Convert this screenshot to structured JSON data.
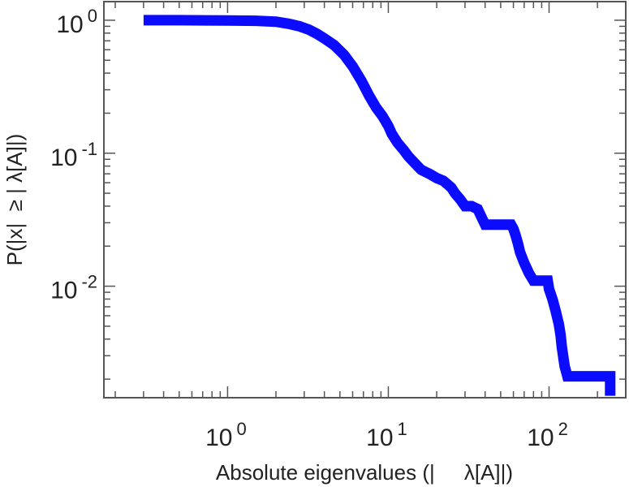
{
  "chart_data": {
    "type": "line",
    "title": "",
    "xlabel": "Absolute eigenvalues (|     λ[A]|)",
    "ylabel": "P(|x|  ≥ | λ[A]|)",
    "xscale": "log",
    "yscale": "log",
    "xlim": [
      0.17,
      300
    ],
    "ylim": [
      0.00145,
      1.38
    ],
    "grid": false,
    "legend": "none",
    "line_color": "#0b0bff",
    "x_ticks": [
      {
        "base": "10",
        "exp": "0",
        "value": 1
      },
      {
        "base": "10",
        "exp": "1",
        "value": 10
      },
      {
        "base": "10",
        "exp": "2",
        "value": 100
      }
    ],
    "y_ticks": [
      {
        "base": "10",
        "exp": "0",
        "value": 1
      },
      {
        "base": "10",
        "exp": "-1",
        "value": 0.1
      },
      {
        "base": "10",
        "exp": "-2",
        "value": 0.01
      }
    ],
    "series": [
      {
        "x": [
          0.3,
          0.5,
          1.0,
          1.5,
          2.0,
          2.4,
          2.8,
          3.2,
          3.6,
          4.0,
          4.6,
          5.3,
          6.0,
          6.8,
          7.6,
          8.4,
          9.2,
          10.0,
          10.5,
          11.4,
          12.5,
          13.3,
          14.5,
          16.0,
          18.0,
          20.0,
          22.0,
          23.5,
          24.7,
          26.0,
          28.0,
          30.0,
          33.0,
          36.0,
          38.0,
          40.0,
          45.0,
          50.0,
          55.0,
          58.0,
          60.0,
          62.0,
          64.0,
          66.0,
          70.0,
          75.0,
          80.0,
          90.0,
          98.0,
          100.0,
          105.0,
          110.0,
          115.0,
          118.0,
          120.0,
          125.0,
          130.0,
          150.0,
          200.0,
          240.0,
          240.0
        ],
        "y": [
          1.0,
          1.0,
          0.995,
          0.99,
          0.975,
          0.94,
          0.9,
          0.85,
          0.79,
          0.73,
          0.65,
          0.55,
          0.45,
          0.35,
          0.27,
          0.22,
          0.19,
          0.16,
          0.14,
          0.12,
          0.105,
          0.095,
          0.085,
          0.075,
          0.07,
          0.065,
          0.062,
          0.058,
          0.055,
          0.05,
          0.045,
          0.04,
          0.04,
          0.038,
          0.033,
          0.029,
          0.029,
          0.029,
          0.029,
          0.029,
          0.027,
          0.024,
          0.021,
          0.018,
          0.015,
          0.0125,
          0.011,
          0.011,
          0.011,
          0.0095,
          0.008,
          0.0065,
          0.0052,
          0.0043,
          0.0035,
          0.0025,
          0.0021,
          0.0021,
          0.0021,
          0.0021,
          0.0015
        ]
      }
    ]
  }
}
